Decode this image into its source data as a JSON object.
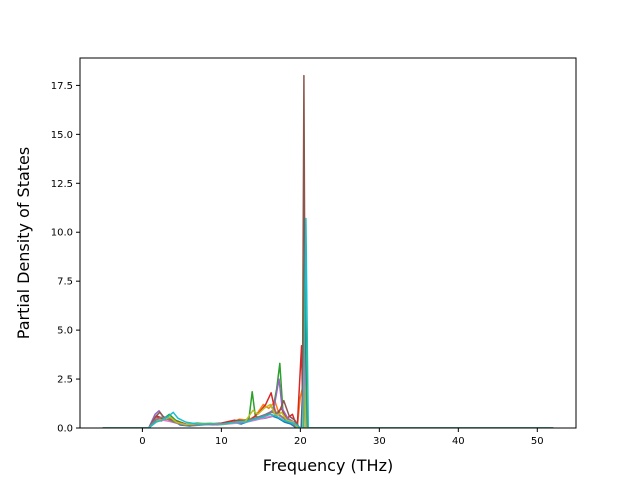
{
  "chart_data": {
    "type": "line",
    "title": "",
    "xlabel": "Frequency (THz)",
    "ylabel": "Partial Density of States",
    "xlim": [
      -7.9,
      54.9
    ],
    "ylim": [
      0,
      18.9
    ],
    "xticks": [
      0,
      10,
      20,
      30,
      40,
      50
    ],
    "xtick_labels": [
      "0",
      "10",
      "20",
      "30",
      "40",
      "50"
    ],
    "yticks": [
      0.0,
      2.5,
      5.0,
      7.5,
      10.0,
      12.5,
      15.0,
      17.5
    ],
    "ytick_labels": [
      "0.0",
      "2.5",
      "5.0",
      "7.5",
      "10.0",
      "12.5",
      "15.0",
      "17.5"
    ],
    "grid": false,
    "legend": "none",
    "series": [
      {
        "color": "#1f77b4",
        "points": [
          [
            -5,
            0
          ],
          [
            0.8,
            0
          ],
          [
            1.5,
            0.3
          ],
          [
            2.0,
            0.55
          ],
          [
            2.6,
            0.4
          ],
          [
            3.3,
            0.5
          ],
          [
            4.0,
            0.35
          ],
          [
            4.8,
            0.15
          ],
          [
            6,
            0.1
          ],
          [
            7.5,
            0.2
          ],
          [
            9,
            0.18
          ],
          [
            10.5,
            0.2
          ],
          [
            11.5,
            0.3
          ],
          [
            12.5,
            0.2
          ],
          [
            13.5,
            0.35
          ],
          [
            14.5,
            0.45
          ],
          [
            15.5,
            0.5
          ],
          [
            16.5,
            0.6
          ],
          [
            17.2,
            0.5
          ],
          [
            18,
            0.3
          ],
          [
            18.8,
            0.2
          ],
          [
            19.5,
            0
          ],
          [
            20.1,
            0
          ],
          [
            20.4,
            3.2
          ],
          [
            20.6,
            5.3
          ],
          [
            20.85,
            0
          ],
          [
            52,
            0
          ]
        ]
      },
      {
        "color": "#ff7f0e",
        "points": [
          [
            -5,
            0
          ],
          [
            0.8,
            0
          ],
          [
            1.7,
            0.45
          ],
          [
            2.4,
            0.35
          ],
          [
            3.2,
            0.55
          ],
          [
            4.0,
            0.3
          ],
          [
            5,
            0.2
          ],
          [
            6.5,
            0.15
          ],
          [
            8,
            0.22
          ],
          [
            9.5,
            0.15
          ],
          [
            11,
            0.25
          ],
          [
            12.3,
            0.45
          ],
          [
            13.3,
            0.4
          ],
          [
            14.3,
            0.6
          ],
          [
            15.3,
            1.2
          ],
          [
            16.0,
            1.0
          ],
          [
            16.8,
            1.35
          ],
          [
            17.4,
            0.6
          ],
          [
            18.2,
            0.5
          ],
          [
            19.0,
            0.3
          ],
          [
            19.6,
            0
          ],
          [
            20.0,
            1.6
          ],
          [
            20.3,
            2.1
          ],
          [
            20.5,
            3.1
          ],
          [
            20.7,
            0
          ],
          [
            52,
            0
          ]
        ]
      },
      {
        "color": "#2ca02c",
        "points": [
          [
            -5,
            0
          ],
          [
            0.8,
            0
          ],
          [
            1.8,
            0.5
          ],
          [
            2.6,
            0.45
          ],
          [
            3.4,
            0.7
          ],
          [
            4.2,
            0.4
          ],
          [
            5.5,
            0.2
          ],
          [
            7,
            0.25
          ],
          [
            8.5,
            0.2
          ],
          [
            10,
            0.22
          ],
          [
            11.5,
            0.3
          ],
          [
            12.8,
            0.35
          ],
          [
            13.5,
            0.5
          ],
          [
            13.9,
            1.85
          ],
          [
            14.3,
            0.6
          ],
          [
            15,
            0.5
          ],
          [
            15.8,
            0.7
          ],
          [
            16.5,
            0.9
          ],
          [
            17.0,
            2.0
          ],
          [
            17.4,
            3.3
          ],
          [
            17.8,
            0.8
          ],
          [
            18.5,
            0.4
          ],
          [
            19.2,
            0.2
          ],
          [
            19.8,
            0
          ],
          [
            20.3,
            0
          ],
          [
            20.55,
            10.4
          ],
          [
            20.8,
            0
          ],
          [
            52,
            0
          ]
        ]
      },
      {
        "color": "#d62728",
        "points": [
          [
            -5,
            0
          ],
          [
            0.8,
            0
          ],
          [
            1.9,
            0.6
          ],
          [
            2.5,
            0.5
          ],
          [
            3.5,
            0.45
          ],
          [
            4.5,
            0.3
          ],
          [
            6,
            0.15
          ],
          [
            8,
            0.2
          ],
          [
            10,
            0.25
          ],
          [
            11.7,
            0.4
          ],
          [
            12.7,
            0.3
          ],
          [
            13.8,
            0.45
          ],
          [
            14.8,
            0.8
          ],
          [
            15.6,
            1.2
          ],
          [
            16.3,
            1.8
          ],
          [
            16.9,
            0.7
          ],
          [
            17.6,
            1.0
          ],
          [
            18.3,
            0.5
          ],
          [
            19.0,
            0.7
          ],
          [
            19.6,
            0
          ],
          [
            20.15,
            4.2
          ],
          [
            20.35,
            0
          ],
          [
            52,
            0
          ]
        ]
      },
      {
        "color": "#9467bd",
        "points": [
          [
            -5,
            0
          ],
          [
            0.8,
            0
          ],
          [
            1.6,
            0.7
          ],
          [
            2.1,
            0.88
          ],
          [
            2.6,
            0.6
          ],
          [
            3.3,
            0.45
          ],
          [
            4.1,
            0.3
          ],
          [
            5.2,
            0.2
          ],
          [
            6.8,
            0.15
          ],
          [
            8.3,
            0.2
          ],
          [
            9.8,
            0.18
          ],
          [
            11.3,
            0.25
          ],
          [
            12.6,
            0.3
          ],
          [
            13.6,
            0.4
          ],
          [
            14.6,
            0.55
          ],
          [
            15.6,
            0.7
          ],
          [
            16.6,
            0.9
          ],
          [
            17.3,
            2.5
          ],
          [
            17.7,
            1.0
          ],
          [
            18.4,
            0.5
          ],
          [
            19.2,
            0.3
          ],
          [
            19.8,
            0
          ],
          [
            20.3,
            0
          ],
          [
            20.5,
            2.5
          ],
          [
            20.7,
            0
          ],
          [
            52,
            0
          ]
        ]
      },
      {
        "color": "#8c564b",
        "points": [
          [
            -5,
            0
          ],
          [
            0.8,
            0
          ],
          [
            1.7,
            0.6
          ],
          [
            2.2,
            0.8
          ],
          [
            2.8,
            0.5
          ],
          [
            3.6,
            0.4
          ],
          [
            4.6,
            0.25
          ],
          [
            6,
            0.15
          ],
          [
            7.8,
            0.18
          ],
          [
            9.5,
            0.2
          ],
          [
            11,
            0.22
          ],
          [
            12.2,
            0.4
          ],
          [
            13.3,
            0.35
          ],
          [
            14.4,
            0.5
          ],
          [
            15.4,
            0.65
          ],
          [
            16.4,
            0.8
          ],
          [
            17.2,
            0.7
          ],
          [
            17.9,
            1.4
          ],
          [
            18.6,
            0.6
          ],
          [
            19.3,
            0.4
          ],
          [
            19.9,
            0
          ],
          [
            20.25,
            0
          ],
          [
            20.45,
            18.0
          ],
          [
            20.65,
            0
          ],
          [
            52,
            0
          ]
        ]
      },
      {
        "color": "#e377c2",
        "points": [
          [
            -5,
            0
          ],
          [
            0.8,
            0
          ],
          [
            1.8,
            0.5
          ],
          [
            2.5,
            0.4
          ],
          [
            3.3,
            0.35
          ],
          [
            4.3,
            0.25
          ],
          [
            5.5,
            0.15
          ],
          [
            7.2,
            0.2
          ],
          [
            9,
            0.15
          ],
          [
            10.6,
            0.2
          ],
          [
            12,
            0.25
          ],
          [
            13.2,
            0.3
          ],
          [
            14.3,
            0.4
          ],
          [
            15.3,
            0.5
          ],
          [
            16.3,
            0.6
          ],
          [
            17.1,
            0.7
          ],
          [
            17.8,
            0.5
          ],
          [
            18.6,
            0.3
          ],
          [
            19.3,
            0.2
          ],
          [
            19.9,
            0
          ],
          [
            20.3,
            0
          ],
          [
            20.5,
            3.8
          ],
          [
            20.7,
            0
          ],
          [
            52,
            0
          ]
        ]
      },
      {
        "color": "#7f7f7f",
        "points": [
          [
            -5,
            0
          ],
          [
            0.8,
            0
          ],
          [
            1.6,
            0.4
          ],
          [
            2.4,
            0.55
          ],
          [
            3.2,
            0.45
          ],
          [
            4.0,
            0.3
          ],
          [
            5,
            0.2
          ],
          [
            6.5,
            0.12
          ],
          [
            8.2,
            0.18
          ],
          [
            9.8,
            0.2
          ],
          [
            11.4,
            0.28
          ],
          [
            12.7,
            0.35
          ],
          [
            13.9,
            0.45
          ],
          [
            14.9,
            0.55
          ],
          [
            15.9,
            0.75
          ],
          [
            16.8,
            0.85
          ],
          [
            17.6,
            0.6
          ],
          [
            18.3,
            0.35
          ],
          [
            19.0,
            0.25
          ],
          [
            19.7,
            0
          ],
          [
            20.3,
            0
          ],
          [
            20.55,
            1.8
          ],
          [
            20.75,
            0
          ],
          [
            52,
            0
          ]
        ]
      },
      {
        "color": "#bcbd22",
        "points": [
          [
            -5,
            0
          ],
          [
            0.8,
            0
          ],
          [
            1.9,
            0.35
          ],
          [
            2.7,
            0.45
          ],
          [
            3.5,
            0.55
          ],
          [
            4.3,
            0.3
          ],
          [
            5.4,
            0.18
          ],
          [
            7.0,
            0.22
          ],
          [
            8.6,
            0.25
          ],
          [
            10.2,
            0.18
          ],
          [
            11.8,
            0.3
          ],
          [
            13.0,
            0.32
          ],
          [
            14.0,
            0.9
          ],
          [
            14.6,
            0.7
          ],
          [
            15.4,
            1.0
          ],
          [
            16.2,
            1.2
          ],
          [
            16.9,
            0.6
          ],
          [
            17.6,
            0.8
          ],
          [
            18.3,
            0.4
          ],
          [
            19.1,
            0.3
          ],
          [
            19.7,
            0
          ],
          [
            20.3,
            0
          ],
          [
            20.5,
            2.2
          ],
          [
            20.7,
            0
          ],
          [
            52,
            0
          ]
        ]
      },
      {
        "color": "#17becf",
        "points": [
          [
            -5,
            0
          ],
          [
            0.8,
            0
          ],
          [
            1.7,
            0.3
          ],
          [
            2.5,
            0.4
          ],
          [
            3.3,
            0.6
          ],
          [
            3.9,
            0.8
          ],
          [
            4.5,
            0.5
          ],
          [
            5.5,
            0.3
          ],
          [
            7.0,
            0.2
          ],
          [
            8.6,
            0.22
          ],
          [
            10.2,
            0.2
          ],
          [
            11.8,
            0.3
          ],
          [
            13.1,
            0.3
          ],
          [
            14.2,
            0.45
          ],
          [
            15.2,
            0.55
          ],
          [
            16.2,
            0.7
          ],
          [
            17.0,
            0.6
          ],
          [
            17.8,
            0.4
          ],
          [
            18.6,
            0.3
          ],
          [
            19.4,
            0.2
          ],
          [
            20.0,
            0
          ],
          [
            20.4,
            0
          ],
          [
            20.7,
            10.7
          ],
          [
            21.0,
            0
          ],
          [
            52,
            0
          ]
        ]
      }
    ]
  }
}
